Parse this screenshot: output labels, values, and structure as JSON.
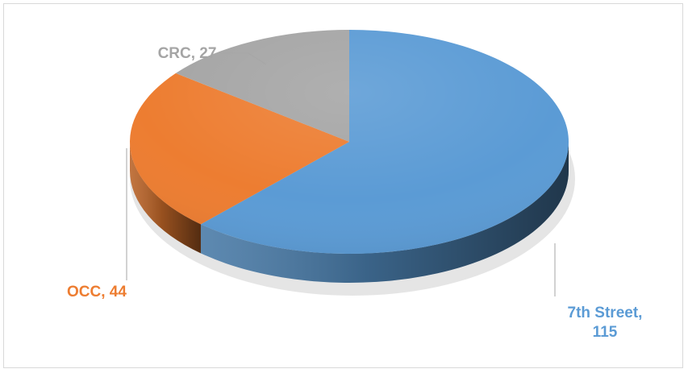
{
  "chart_data": {
    "type": "pie",
    "style": "3d",
    "title": "",
    "legend": "none",
    "slices": [
      {
        "label": "7th Street",
        "value": 115,
        "color": "#5b9bd5",
        "label_line1": "7th Street,",
        "label_line2": "115"
      },
      {
        "label": "OCC",
        "value": 44,
        "color": "#ed7d31",
        "label_line1": "OCC, 44"
      },
      {
        "label": "CRC",
        "value": 27,
        "color": "#a5a5a5",
        "label_line1": "CRC, 27"
      }
    ]
  }
}
